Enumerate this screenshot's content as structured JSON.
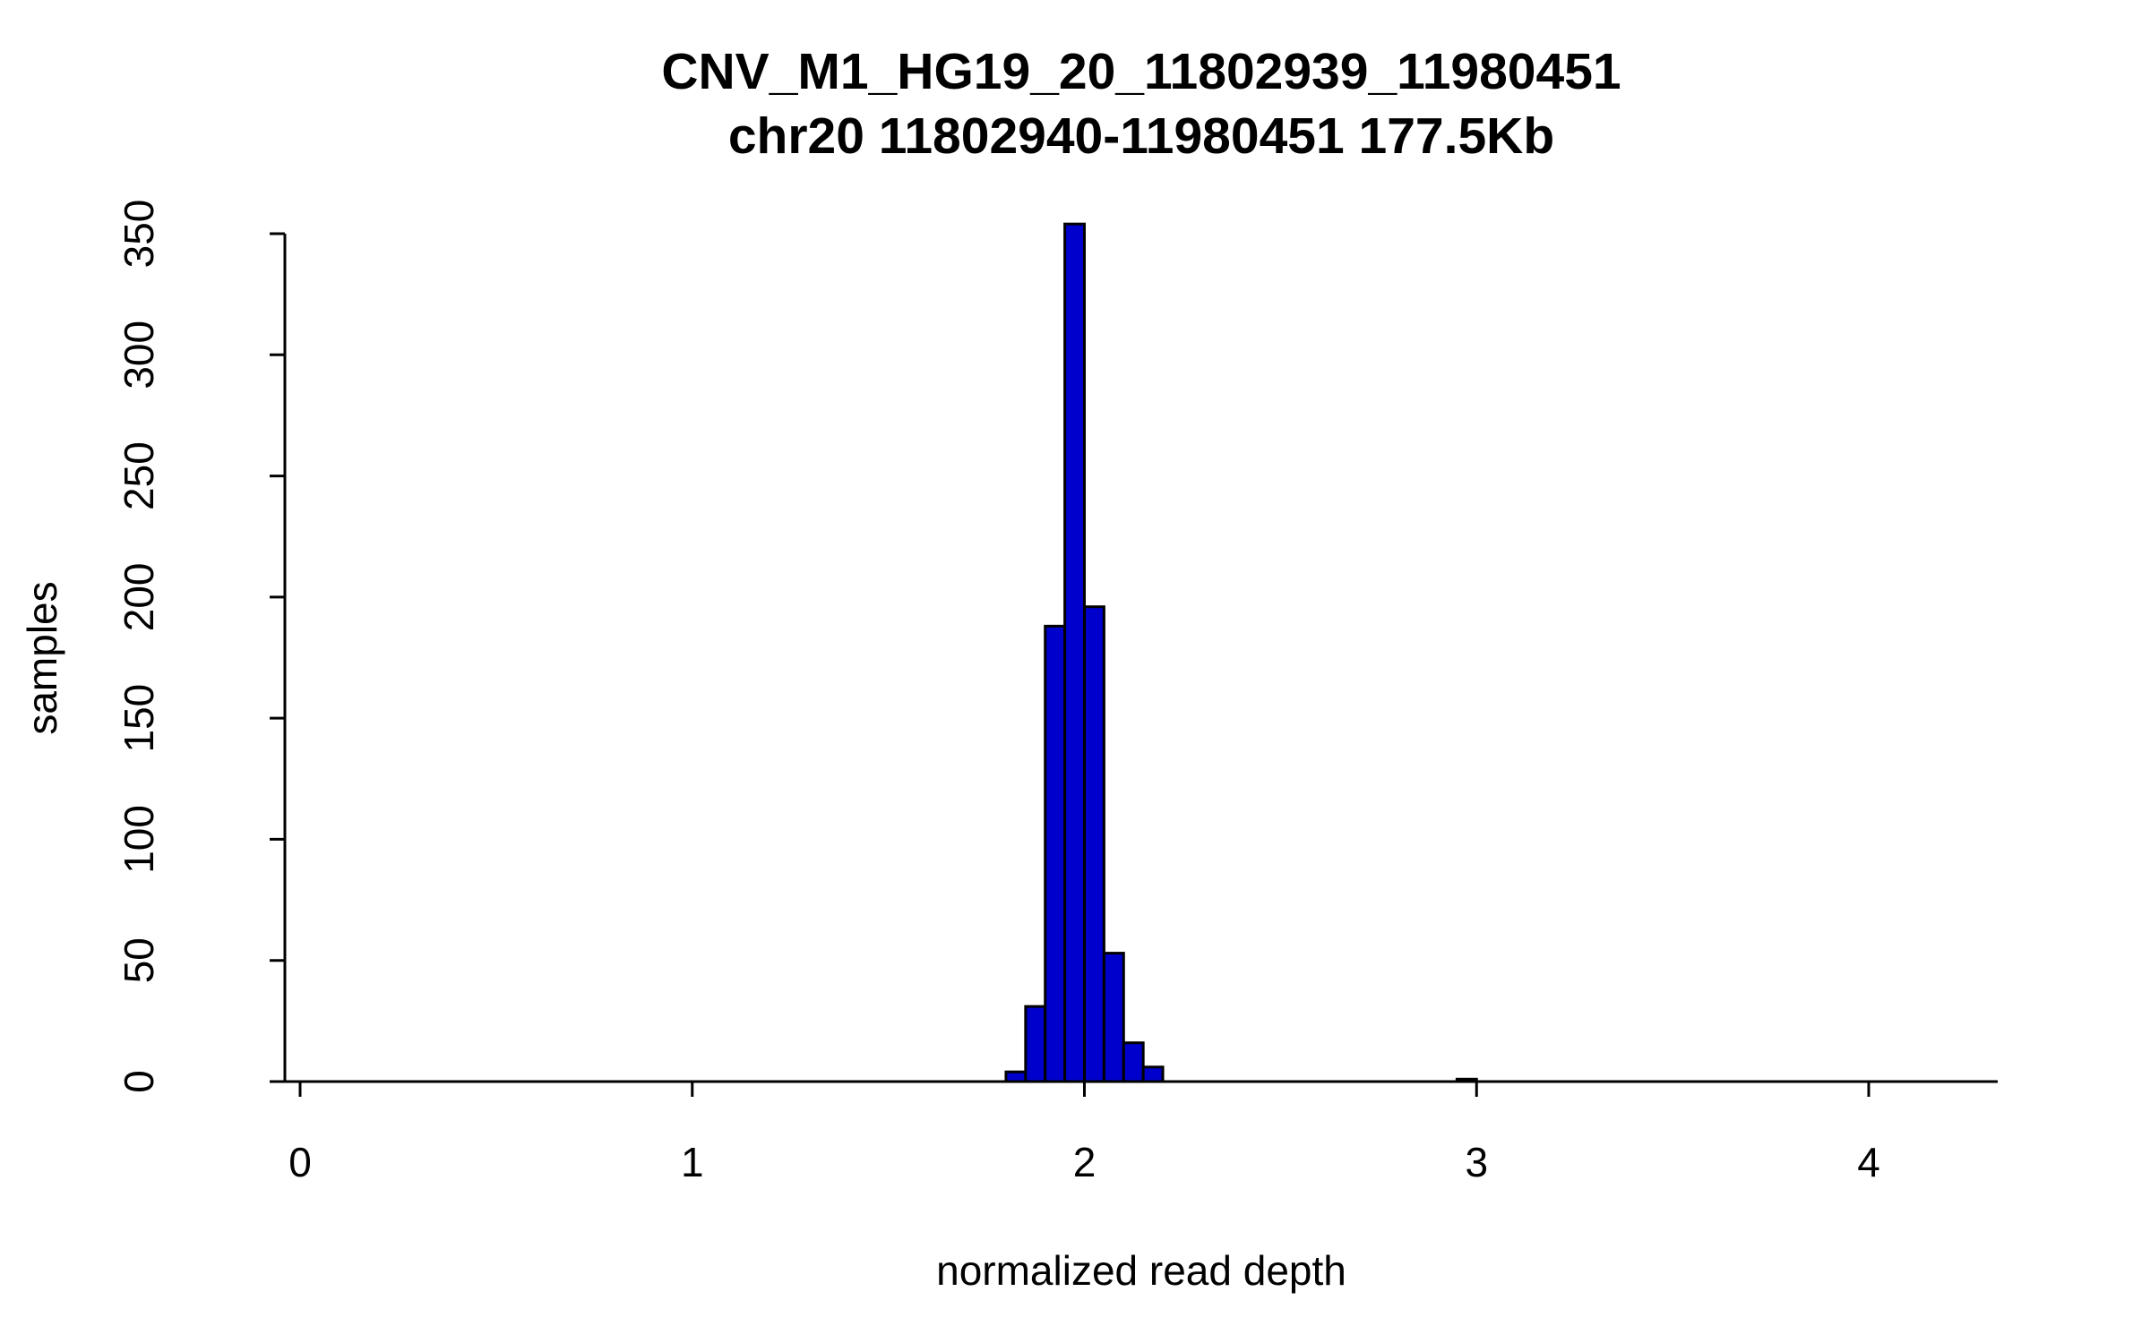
{
  "chart": {
    "title_line1": "CNV_M1_HG19_20_11802939_11980451",
    "title_line2": "chr20 11802940-11980451 177.5Kb",
    "xlabel": "normalized read depth",
    "ylabel": "samples",
    "colors": {
      "bar_fill": "#0000CD",
      "bar_stroke": "#000000",
      "axis": "#000000",
      "background": "#ffffff"
    }
  },
  "chart_data": {
    "type": "bar",
    "subtype": "histogram",
    "title": "CNV_M1_HG19_20_11802939_11980451",
    "subtitle": "chr20 11802940-11980451 177.5Kb",
    "xlabel": "normalized read depth",
    "ylabel": "samples",
    "xlim": [
      -0.04,
      4.33
    ],
    "ylim": [
      0,
      350
    ],
    "grid": false,
    "legend": false,
    "x_ticks": [
      0,
      1,
      2,
      3,
      4
    ],
    "y_ticks": [
      0,
      50,
      100,
      150,
      200,
      250,
      300,
      350
    ],
    "bin_width": 0.05,
    "bins": [
      {
        "x0": 1.8,
        "x1": 1.85,
        "count": 4
      },
      {
        "x0": 1.85,
        "x1": 1.9,
        "count": 31
      },
      {
        "x0": 1.9,
        "x1": 1.95,
        "count": 188
      },
      {
        "x0": 1.95,
        "x1": 2.0,
        "count": 354
      },
      {
        "x0": 2.0,
        "x1": 2.05,
        "count": 196
      },
      {
        "x0": 2.05,
        "x1": 2.1,
        "count": 53
      },
      {
        "x0": 2.1,
        "x1": 2.15,
        "count": 16
      },
      {
        "x0": 2.15,
        "x1": 2.2,
        "count": 6
      },
      {
        "x0": 2.95,
        "x1": 3.0,
        "count": 1
      }
    ]
  }
}
